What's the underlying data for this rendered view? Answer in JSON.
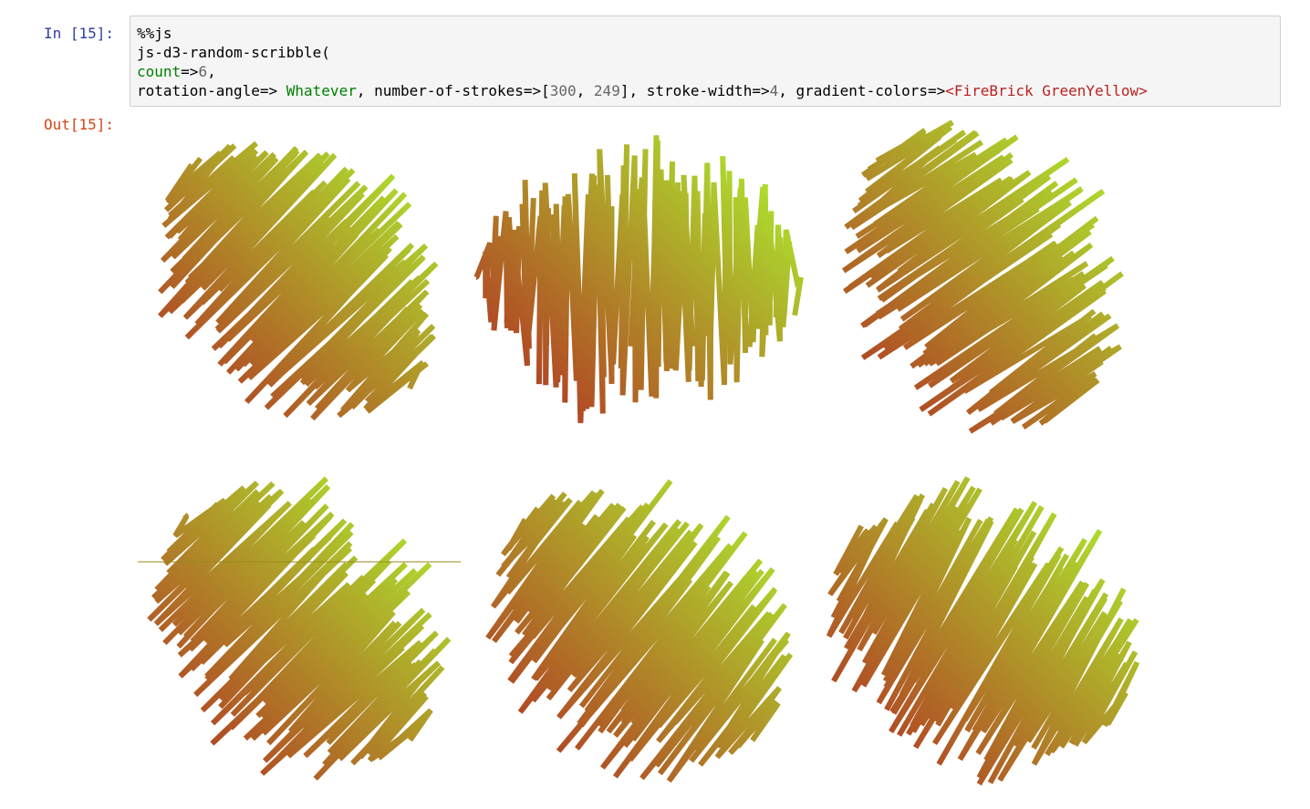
{
  "prompts": {
    "in": "In [15]:",
    "out": "Out[15]:"
  },
  "code": {
    "line1": "%%js",
    "line2": "js-d3-random-scribble(",
    "line3": {
      "kw": "count",
      "op": "=>",
      "num": "6",
      "tail": ","
    },
    "line4": {
      "p1": "rotation-angle=> ",
      "kw": "Whatever",
      "p2": ", number-of-strokes=>[",
      "n1": "300",
      "p3": ", ",
      "n2": "249",
      "p4": "], stroke-width=>",
      "n3": "4",
      "p5": ", gradient-colors=>",
      "str": "<FireBrick GreenYellow>"
    }
  },
  "output": {
    "scribble_count": 6,
    "gradient_colors": [
      "#B22222",
      "#ADFF2F"
    ],
    "stroke_width": 4,
    "number_of_strokes": [
      300,
      249
    ],
    "rotation_angle": "Whatever"
  }
}
